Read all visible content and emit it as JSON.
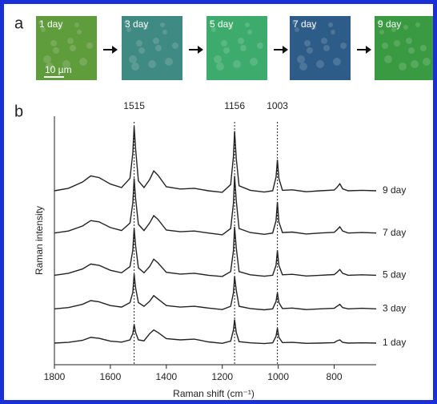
{
  "panel_a": {
    "label": "a",
    "scale_bar": "10 µm",
    "images": [
      {
        "label": "1 day",
        "color": "#5e9c3c"
      },
      {
        "label": "3 day",
        "color": "#3f8a82"
      },
      {
        "label": "5 day",
        "color": "#3cab6c"
      },
      {
        "label": "7 day",
        "color": "#2e5c88"
      },
      {
        "label": "9 day",
        "color": "#3a9a42"
      }
    ]
  },
  "chart_data": {
    "type": "line",
    "panel_label": "b",
    "x_label": "Raman shift (cm⁻¹)",
    "y_label": "Raman intensity",
    "xlim": [
      1800,
      650
    ],
    "xticks": [
      1800,
      1600,
      1400,
      1200,
      1000,
      800
    ],
    "ylim": [
      0,
      100
    ],
    "peak_lines": [
      1515,
      1156,
      1003
    ],
    "x": [
      1800,
      1750,
      1700,
      1670,
      1640,
      1600,
      1560,
      1530,
      1520,
      1515,
      1510,
      1500,
      1480,
      1460,
      1445,
      1430,
      1400,
      1350,
      1300,
      1250,
      1200,
      1170,
      1160,
      1156,
      1150,
      1140,
      1100,
      1050,
      1020,
      1008,
      1003,
      998,
      985,
      950,
      900,
      850,
      800,
      790,
      780,
      770,
      750,
      700,
      650
    ],
    "series": [
      {
        "name": "1 day",
        "color": "#222222",
        "values": [
          8.7,
          9.0,
          9.8,
          11,
          10.6,
          9.5,
          9.1,
          10,
          12.5,
          16.2,
          13,
          10,
          9.6,
          12.5,
          14,
          13,
          10.5,
          10,
          10.3,
          9.2,
          8.6,
          9.5,
          14,
          18.2,
          13,
          9.3,
          8.8,
          8.5,
          8.8,
          11.5,
          14.7,
          11,
          8.9,
          9,
          8.6,
          8.7,
          8.9,
          9.6,
          10,
          9,
          8.7,
          8.8,
          8.7
        ]
      },
      {
        "name": "3 day",
        "color": "#222222",
        "values": [
          22.5,
          23,
          24.3,
          25.8,
          25.3,
          23.8,
          23.2,
          25,
          29,
          36.5,
          31,
          25,
          23.5,
          25.5,
          27.8,
          26.5,
          23.8,
          23.2,
          23.5,
          22.8,
          22.2,
          23.5,
          29,
          35.5,
          30,
          23.5,
          22.6,
          22.1,
          22.5,
          25.5,
          29,
          25,
          22.6,
          22.8,
          22.2,
          22.5,
          22.7,
          23.5,
          24.3,
          23,
          22.5,
          22.7,
          22.5
        ]
      },
      {
        "name": "5 day",
        "color": "#222222",
        "values": [
          36,
          36.8,
          38.5,
          40.5,
          40,
          38,
          37,
          39.5,
          46,
          55,
          48,
          39,
          37,
          39.5,
          42.5,
          41,
          37.2,
          36.5,
          36.8,
          36,
          35.5,
          37.5,
          46,
          55.5,
          47,
          37.5,
          36.2,
          35.6,
          36,
          40,
          46,
          40,
          36.2,
          36.4,
          35.7,
          36,
          36.3,
          37.2,
          38.3,
          36.8,
          36,
          36.2,
          36
        ]
      },
      {
        "name": "7 day",
        "color": "#222222",
        "values": [
          53,
          53.8,
          55.8,
          58,
          57.5,
          55.2,
          54,
          57,
          65,
          75,
          67,
          56.5,
          54,
          57,
          60,
          58.5,
          54.2,
          53.5,
          53.8,
          53,
          52.3,
          54.8,
          65,
          76,
          66,
          54.8,
          53.2,
          52.5,
          53,
          58,
          65.5,
          57.5,
          53.2,
          53.4,
          52.6,
          53,
          53.3,
          54.3,
          55.5,
          53.8,
          53,
          53.2,
          53
        ]
      },
      {
        "name": "9 day",
        "color": "#222222",
        "values": [
          70,
          71,
          73.5,
          76,
          75.3,
          72.7,
          71.3,
          75,
          85,
          96,
          87,
          74,
          71.3,
          74.5,
          78,
          76.3,
          71.6,
          70.7,
          71,
          70,
          69.4,
          72.5,
          84,
          94,
          83,
          72,
          70.2,
          69.5,
          70,
          75.5,
          82.5,
          75,
          70.2,
          70.4,
          69.6,
          70,
          70.3,
          71.4,
          72.8,
          70.8,
          70,
          70.2,
          70
        ]
      }
    ]
  }
}
